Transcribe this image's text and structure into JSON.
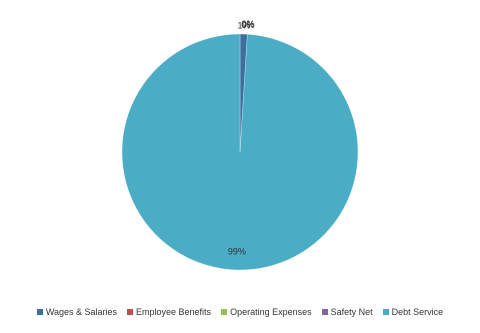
{
  "chart_data": {
    "type": "pie",
    "categories": [
      "Wages & Salaries",
      "Employee Benefits",
      "Operating Expenses",
      "Safety Net",
      "Debt Service"
    ],
    "values": [
      1,
      0,
      0,
      0,
      99
    ],
    "value_labels": [
      "1%",
      "0%",
      "0%",
      "0%",
      "99%"
    ],
    "colors": [
      "#3a6f9f",
      "#c0504d",
      "#9bbb59",
      "#8064a2",
      "#4bacc6"
    ],
    "legend": "bottom"
  }
}
